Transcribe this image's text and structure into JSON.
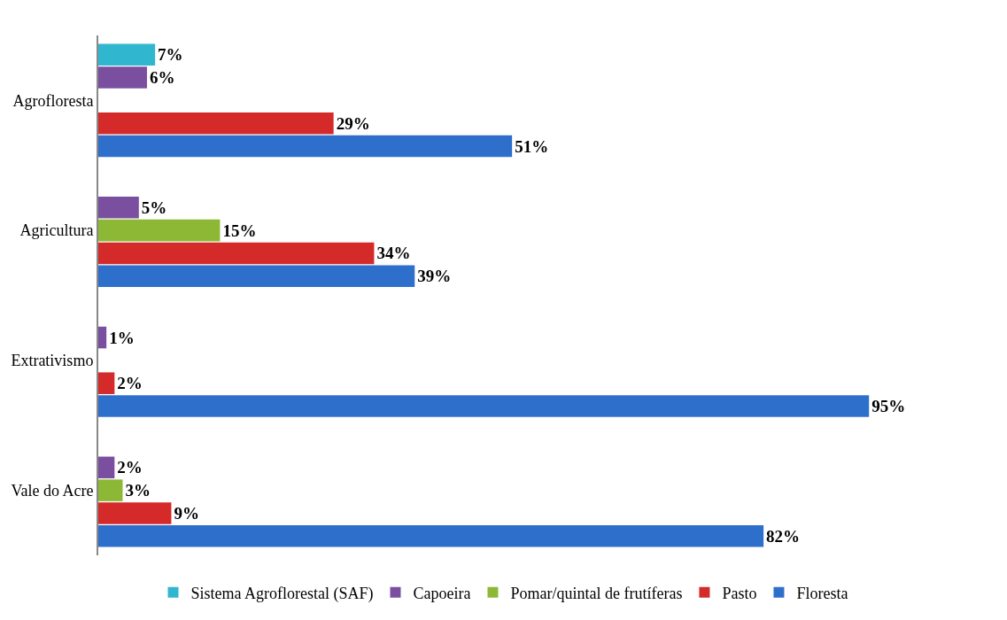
{
  "chart_data": {
    "type": "bar",
    "orientation": "horizontal",
    "categories": [
      "Agrofloresta",
      "Agricultura",
      "Extrativismo",
      "Vale do Acre"
    ],
    "series": [
      {
        "name": "Sistema Agroflorestal (SAF)",
        "color": "#31b6cf",
        "values": [
          7,
          null,
          null,
          null
        ],
        "value_labels": [
          "7%",
          null,
          null,
          null
        ]
      },
      {
        "name": "Capoeira",
        "color": "#7a4fa0",
        "values": [
          6,
          5,
          1,
          2
        ],
        "value_labels": [
          "6%",
          "5%",
          "1%",
          "2%"
        ]
      },
      {
        "name": "Pomar/quintal de frutíferas",
        "color": "#8cb836",
        "values": [
          null,
          15,
          null,
          3
        ],
        "value_labels": [
          null,
          "15%",
          null,
          "3%"
        ]
      },
      {
        "name": "Pasto",
        "color": "#d42a2a",
        "values": [
          29,
          34,
          2,
          9
        ],
        "value_labels": [
          "29%",
          "34%",
          "2%",
          "9%"
        ]
      },
      {
        "name": "Floresta",
        "color": "#2e6fcc",
        "values": [
          51,
          39,
          95,
          82
        ],
        "value_labels": [
          "51%",
          "39%",
          "95%",
          "82%"
        ]
      }
    ],
    "legend": "bottom"
  }
}
